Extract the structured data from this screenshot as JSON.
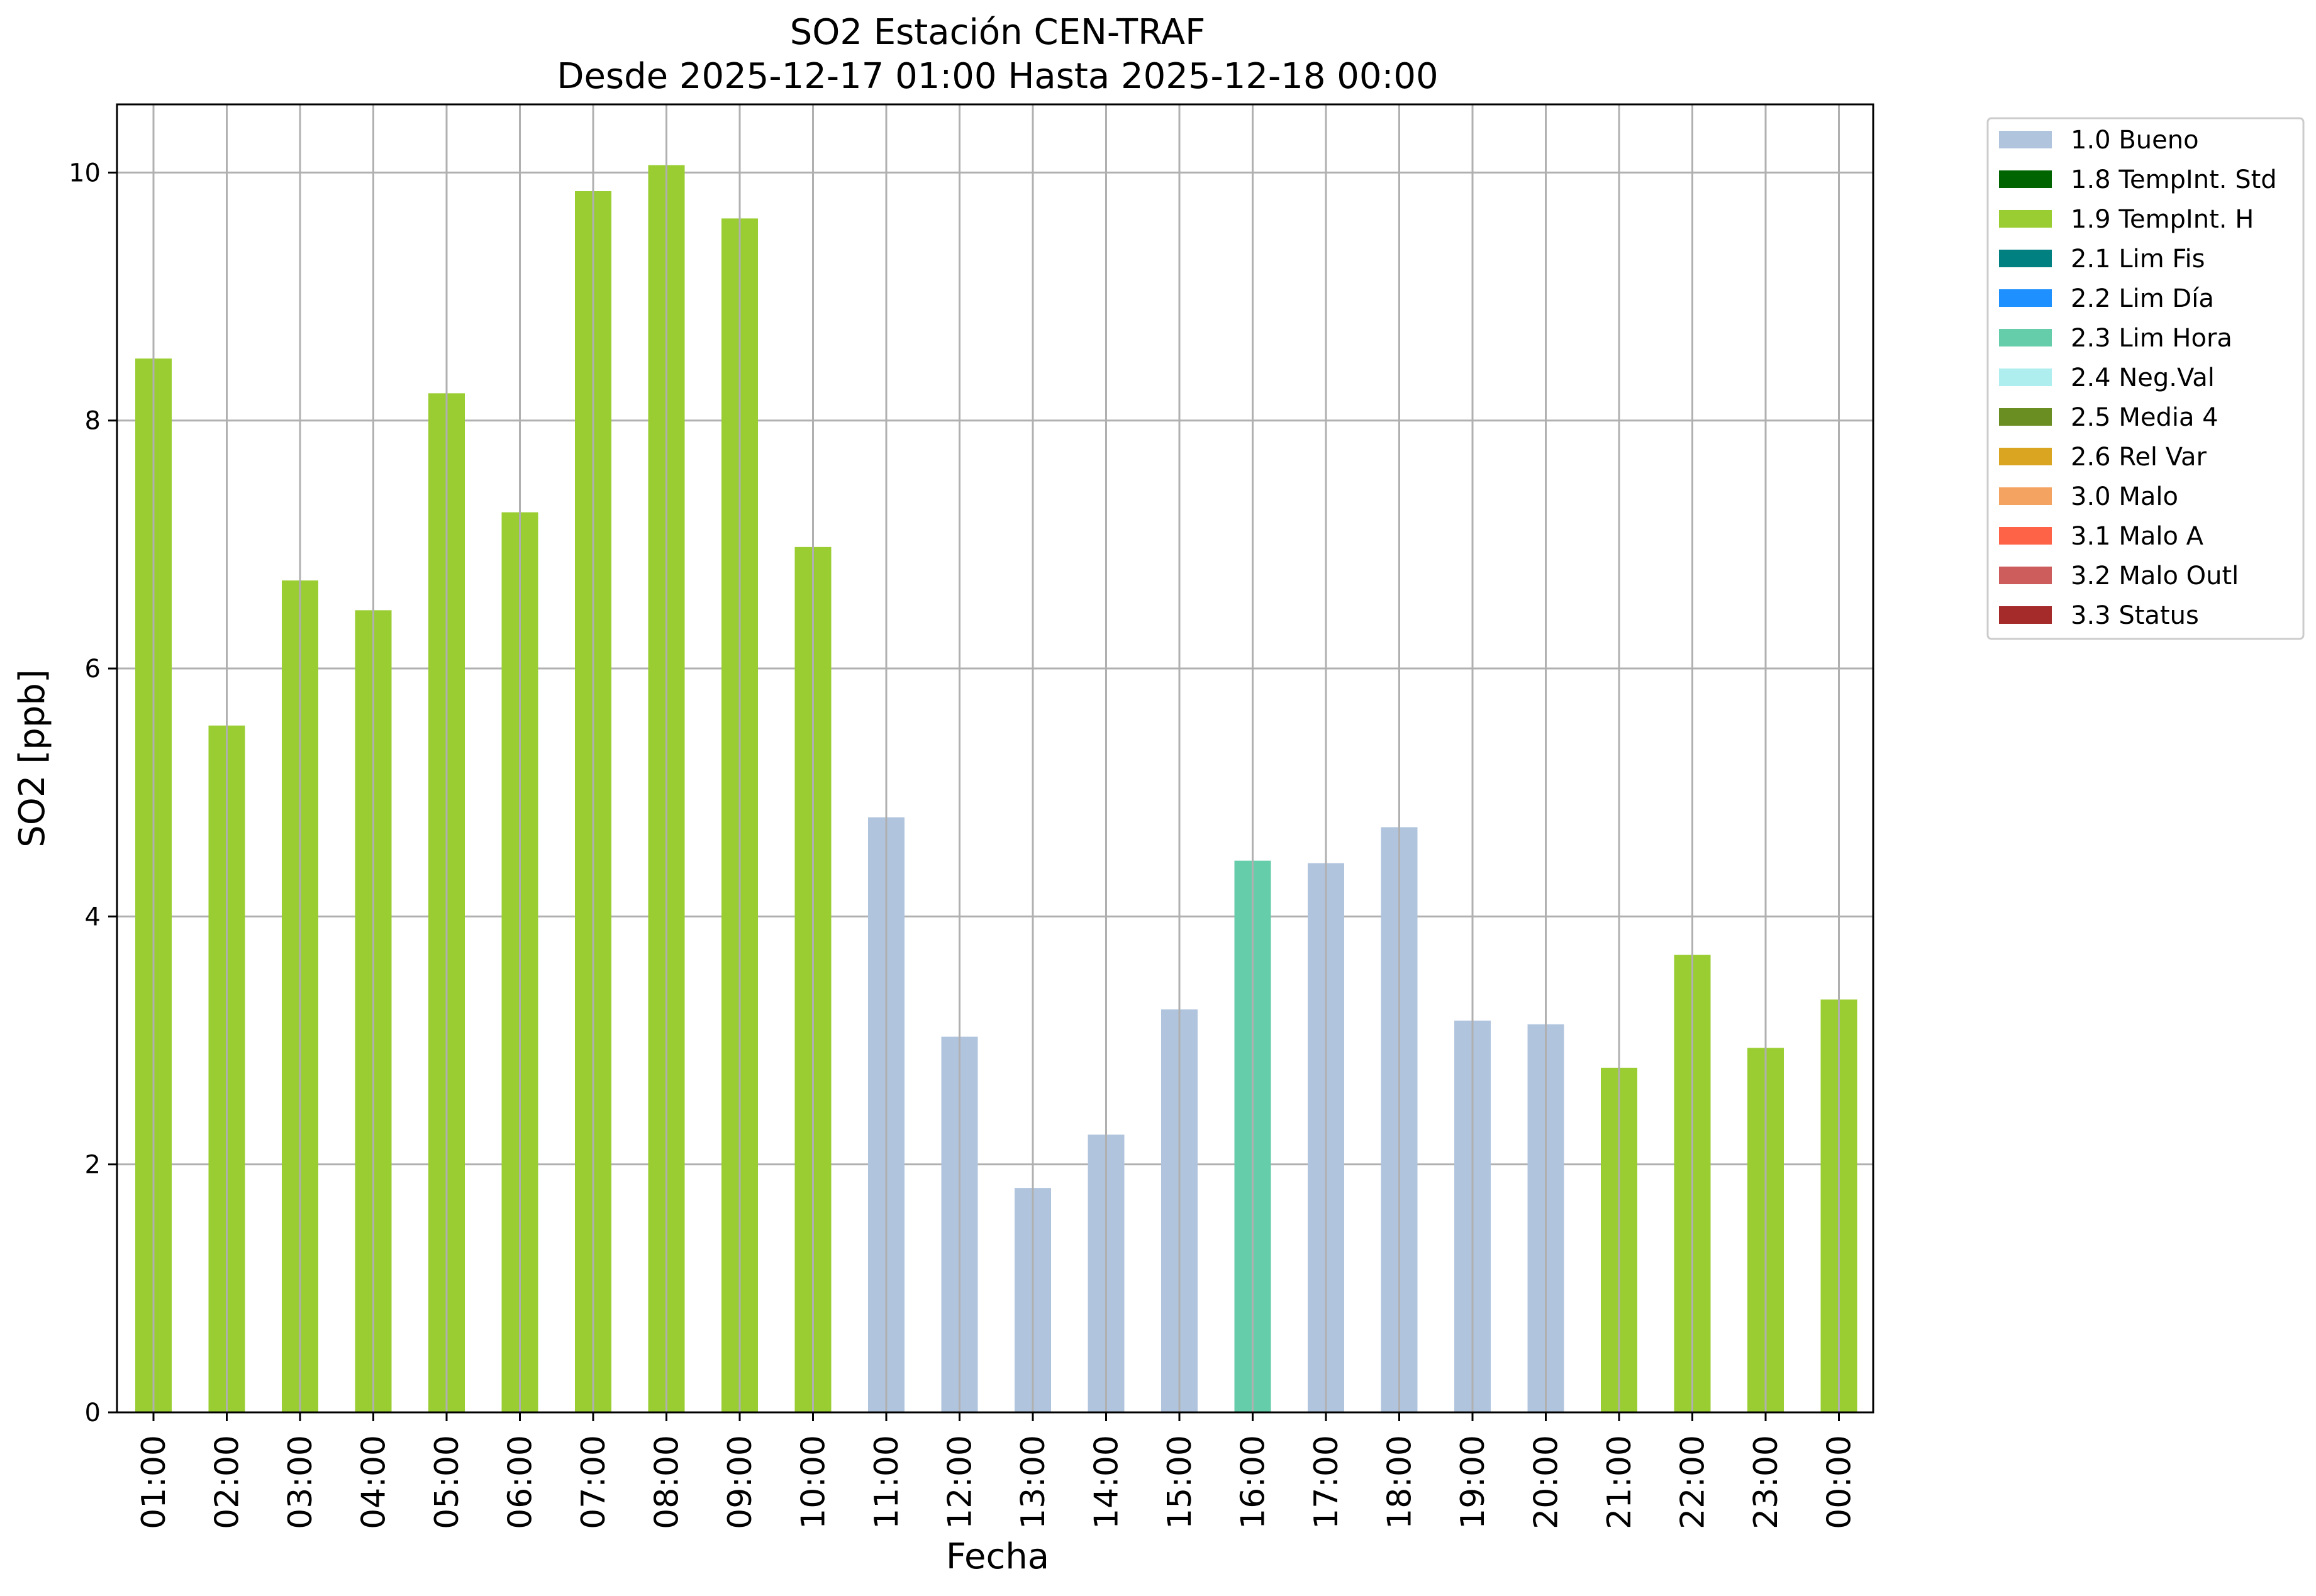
{
  "chart_data": {
    "type": "bar",
    "title": "SO2 Estación CEN-TRAF",
    "subtitle": "Desde 2025-12-17 01:00 Hasta 2025-12-18 00:00",
    "xlabel": "Fecha",
    "ylabel": "SO2 [ppb]",
    "ylim": [
      0,
      10.55
    ],
    "yticks": [
      "0",
      "2",
      "4",
      "6",
      "8",
      "10"
    ],
    "grid": true,
    "legend_position": "outside-right",
    "categories": [
      "01:00",
      "02:00",
      "03:00",
      "04:00",
      "05:00",
      "06:00",
      "07:00",
      "08:00",
      "09:00",
      "10:00",
      "11:00",
      "12:00",
      "13:00",
      "14:00",
      "15:00",
      "16:00",
      "17:00",
      "18:00",
      "19:00",
      "20:00",
      "21:00",
      "22:00",
      "23:00",
      "00:00"
    ],
    "values": [
      8.5,
      5.54,
      6.71,
      6.47,
      8.22,
      7.26,
      9.85,
      10.06,
      9.63,
      6.98,
      4.8,
      3.03,
      1.81,
      2.24,
      3.25,
      4.45,
      4.43,
      4.72,
      3.16,
      3.13,
      2.78,
      3.69,
      2.94,
      3.33
    ],
    "flags": [
      "1.9 TempInt. H",
      "1.9 TempInt. H",
      "1.9 TempInt. H",
      "1.9 TempInt. H",
      "1.9 TempInt. H",
      "1.9 TempInt. H",
      "1.9 TempInt. H",
      "1.9 TempInt. H",
      "1.9 TempInt. H",
      "1.9 TempInt. H",
      "1.0 Bueno",
      "1.0 Bueno",
      "1.0 Bueno",
      "1.0 Bueno",
      "1.0 Bueno",
      "2.3 Lim Hora",
      "1.0 Bueno",
      "1.0 Bueno",
      "1.0 Bueno",
      "1.0 Bueno",
      "1.9 TempInt. H",
      "1.9 TempInt. H",
      "1.9 TempInt. H",
      "1.9 TempInt. H"
    ],
    "legend": [
      {
        "name": "1.0 Bueno",
        "color": "#b0c4de"
      },
      {
        "name": "1.8 TempInt. Std",
        "color": "#006400"
      },
      {
        "name": "1.9 TempInt. H",
        "color": "#9acd32"
      },
      {
        "name": "2.1 Lim Fis",
        "color": "#008080"
      },
      {
        "name": "2.2 Lim Día",
        "color": "#1e90ff"
      },
      {
        "name": "2.3 Lim Hora",
        "color": "#66cdaa"
      },
      {
        "name": "2.4 Neg.Val",
        "color": "#afeeee"
      },
      {
        "name": "2.5 Media 4",
        "color": "#6b8e23"
      },
      {
        "name": "2.6 Rel Var",
        "color": "#daa520"
      },
      {
        "name": "3.0 Malo",
        "color": "#f4a460"
      },
      {
        "name": "3.1 Malo A",
        "color": "#ff6347"
      },
      {
        "name": "3.2 Malo Outl",
        "color": "#cd5c5c"
      },
      {
        "name": "3.3 Status",
        "color": "#a52a2a"
      }
    ]
  }
}
